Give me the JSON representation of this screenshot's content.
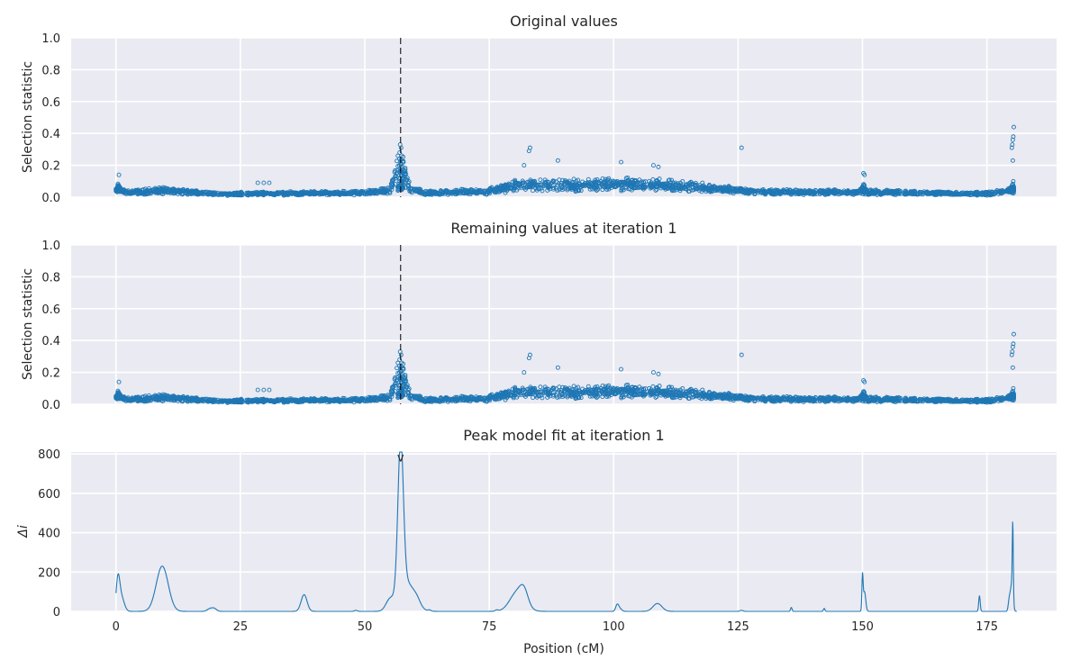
{
  "colors": {
    "plot_bg": "#eaeaf2",
    "grid": "#ffffff",
    "series": "#1f77b4",
    "peak_line": "#000000",
    "text": "#262626"
  },
  "chart_data": [
    {
      "type": "scatter",
      "title": "Original values",
      "xlabel": "",
      "ylabel": "Selection statistic",
      "xlim": [
        -9,
        189
      ],
      "ylim": [
        0,
        1
      ],
      "xticks": [
        0,
        25,
        50,
        75,
        100,
        125,
        150,
        175
      ],
      "yticks": [
        "0.0",
        "0.2",
        "0.4",
        "0.6",
        "0.8",
        "1.0"
      ],
      "show_xtick_labels": false,
      "marker": "open-circle",
      "grid": true,
      "peak_marker": {
        "style": "dashed-vertical-line",
        "x": 57.2
      },
      "profile": {
        "x_range": [
          0,
          180.4
        ],
        "baseline": [
          [
            0,
            0.06
          ],
          [
            2,
            0.025
          ],
          [
            10,
            0.04
          ],
          [
            20,
            0.02
          ],
          [
            50,
            0.025
          ],
          [
            55,
            0.04
          ],
          [
            57.2,
            0.22
          ],
          [
            59,
            0.05
          ],
          [
            62,
            0.025
          ],
          [
            75,
            0.035
          ],
          [
            80,
            0.07
          ],
          [
            90,
            0.07
          ],
          [
            100,
            0.08
          ],
          [
            110,
            0.07
          ],
          [
            120,
            0.05
          ],
          [
            130,
            0.03
          ],
          [
            150,
            0.03
          ],
          [
            175,
            0.02
          ],
          [
            180.4,
            0.04
          ]
        ],
        "peaks_x": [
          0.5,
          57.2,
          150.2,
          180.2
        ],
        "outliers": [
          {
            "x": 0.6,
            "y": 0.14
          },
          {
            "x": 28.5,
            "y": 0.09
          },
          {
            "x": 29.7,
            "y": 0.09
          },
          {
            "x": 30.8,
            "y": 0.09
          },
          {
            "x": 57.1,
            "y": 0.33
          },
          {
            "x": 57.3,
            "y": 0.31
          },
          {
            "x": 57.0,
            "y": 0.28
          },
          {
            "x": 57.4,
            "y": 0.26
          },
          {
            "x": 83,
            "y": 0.29
          },
          {
            "x": 83.2,
            "y": 0.31
          },
          {
            "x": 88.8,
            "y": 0.23
          },
          {
            "x": 82,
            "y": 0.2
          },
          {
            "x": 101.5,
            "y": 0.22
          },
          {
            "x": 108,
            "y": 0.2
          },
          {
            "x": 109,
            "y": 0.19
          },
          {
            "x": 125.7,
            "y": 0.31
          },
          {
            "x": 150.2,
            "y": 0.15
          },
          {
            "x": 150.4,
            "y": 0.14
          },
          {
            "x": 180.4,
            "y": 0.44
          },
          {
            "x": 180.3,
            "y": 0.38
          },
          {
            "x": 180.2,
            "y": 0.36
          },
          {
            "x": 180.1,
            "y": 0.33
          },
          {
            "x": 180.0,
            "y": 0.31
          },
          {
            "x": 180.2,
            "y": 0.23
          },
          {
            "x": 180.3,
            "y": 0.1
          }
        ]
      }
    },
    {
      "type": "scatter",
      "title": "Remaining values at iteration 1",
      "xlabel": "",
      "ylabel": "Selection statistic",
      "xlim": [
        -9,
        189
      ],
      "ylim": [
        0,
        1
      ],
      "xticks": [
        0,
        25,
        50,
        75,
        100,
        125,
        150,
        175
      ],
      "yticks": [
        "0.0",
        "0.2",
        "0.4",
        "0.6",
        "0.8",
        "1.0"
      ],
      "show_xtick_labels": false,
      "marker": "open-circle",
      "grid": true,
      "peak_marker": {
        "style": "dashed-vertical-line",
        "x": 57.2
      },
      "profile": "same as Original values"
    },
    {
      "type": "line",
      "title": "Peak model fit at iteration 1",
      "xlabel": "Position (cM)",
      "ylabel": "Δi",
      "xlim": [
        -9,
        189
      ],
      "ylim": [
        0,
        810
      ],
      "xticks": [
        0,
        25,
        50,
        75,
        100,
        125,
        150,
        175
      ],
      "xtick_labels": [
        "0",
        "25",
        "50",
        "75",
        "100",
        "125",
        "150",
        "175"
      ],
      "yticks": [
        "0",
        "200",
        "400",
        "600",
        "800"
      ],
      "grid": true,
      "peak_marker": {
        "style": "v-label",
        "label": "v",
        "x": 57.2
      },
      "components": [
        {
          "center": 0.4,
          "height": 140,
          "width": 0.35
        },
        {
          "center": 1.0,
          "height": 80,
          "width": 0.6
        },
        {
          "center": 9.3,
          "height": 230,
          "width": 1.2
        },
        {
          "center": 18.8,
          "height": 12,
          "width": 0.5
        },
        {
          "center": 19.7,
          "height": 15,
          "width": 0.5
        },
        {
          "center": 37.8,
          "height": 85,
          "width": 0.6
        },
        {
          "center": 48.2,
          "height": 5,
          "width": 0.3
        },
        {
          "center": 55.0,
          "height": 50,
          "width": 0.8
        },
        {
          "center": 57.2,
          "height": 765,
          "width": 0.55
        },
        {
          "center": 58.3,
          "height": 150,
          "width": 1.6
        },
        {
          "center": 60.5,
          "height": 25,
          "width": 0.7
        },
        {
          "center": 63.0,
          "height": 6,
          "width": 0.3
        },
        {
          "center": 76.5,
          "height": 6,
          "width": 0.3
        },
        {
          "center": 80.7,
          "height": 100,
          "width": 1.5
        },
        {
          "center": 82.0,
          "height": 60,
          "width": 0.8
        },
        {
          "center": 100.7,
          "height": 30,
          "width": 0.3
        },
        {
          "center": 101.2,
          "height": 15,
          "width": 0.4
        },
        {
          "center": 108.8,
          "height": 40,
          "width": 0.9
        },
        {
          "center": 125.7,
          "height": 5,
          "width": 0.3
        },
        {
          "center": 135.7,
          "height": 20,
          "width": 0.15
        },
        {
          "center": 142.3,
          "height": 15,
          "width": 0.15
        },
        {
          "center": 150.0,
          "height": 170,
          "width": 0.12
        },
        {
          "center": 150.4,
          "height": 100,
          "width": 0.25
        },
        {
          "center": 173.5,
          "height": 80,
          "width": 0.15
        },
        {
          "center": 179.5,
          "height": 60,
          "width": 0.2
        },
        {
          "center": 180.2,
          "height": 360,
          "width": 0.1
        },
        {
          "center": 180.0,
          "height": 140,
          "width": 0.25
        }
      ]
    }
  ]
}
